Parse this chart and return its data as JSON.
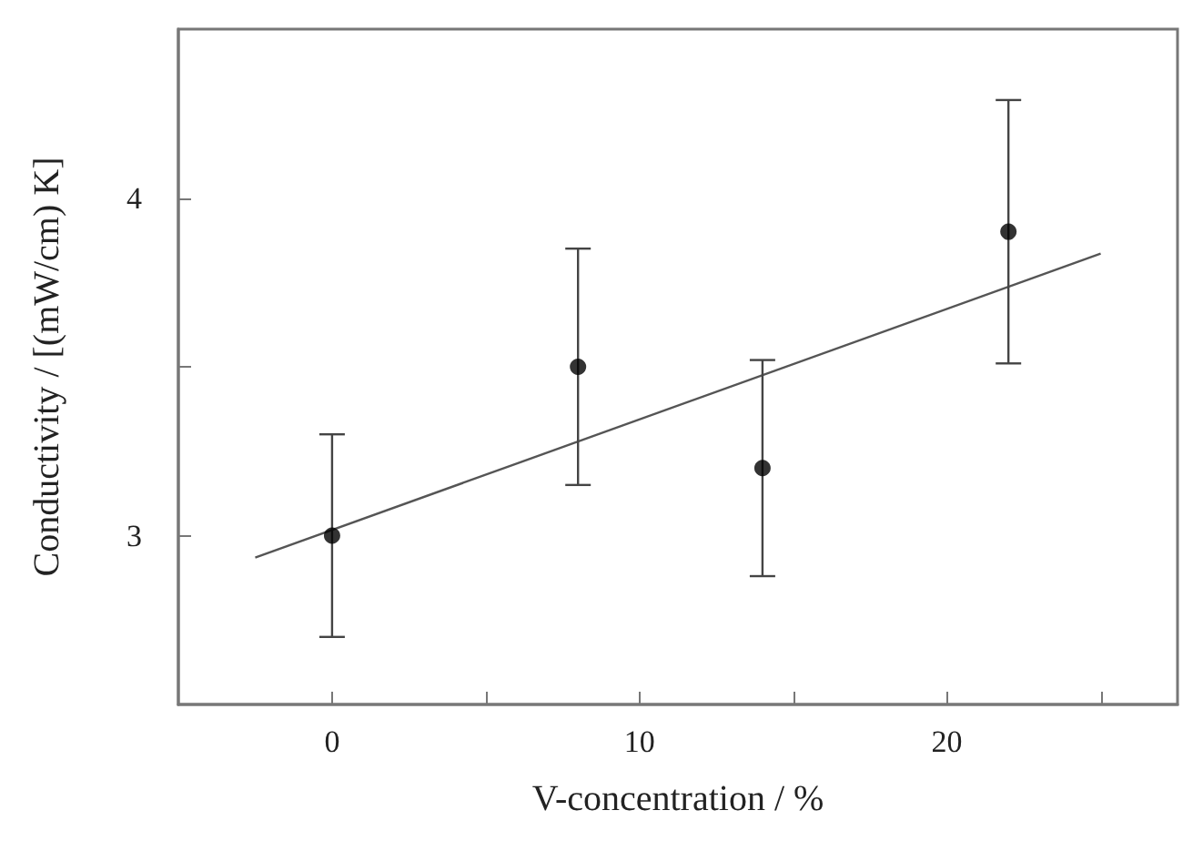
{
  "chart_data": {
    "type": "scatter",
    "xlabel": "V-concentration / %",
    "ylabel": "Conductivity / [(mW/cm) K]",
    "xlim": [
      -5,
      27.5
    ],
    "ylim": [
      2.5,
      4.5
    ],
    "xticks": [
      0,
      10,
      20,
      {
        "value": 5,
        "label": null
      },
      {
        "value": 15,
        "label": null
      },
      {
        "value": 25,
        "label": null
      }
    ],
    "yticks": [
      3,
      4,
      {
        "value": 3.5,
        "label": null
      }
    ],
    "grid": false,
    "marker": "circle",
    "series": [
      {
        "color": "#000000",
        "x": [
          0,
          8,
          14,
          22
        ],
        "values": [
          3.0,
          3.5,
          3.2,
          3.9
        ],
        "errors": [
          [
            2.7,
            3.3
          ],
          [
            3.15,
            3.85
          ],
          [
            2.88,
            3.52
          ],
          [
            3.51,
            4.29
          ]
        ]
      },
      {
        "type": "line",
        "color": "#555555",
        "marker": "none",
        "line_style": "solid",
        "x": [
          -2.5,
          25
        ],
        "values": [
          2.935,
          3.835
        ]
      }
    ]
  }
}
